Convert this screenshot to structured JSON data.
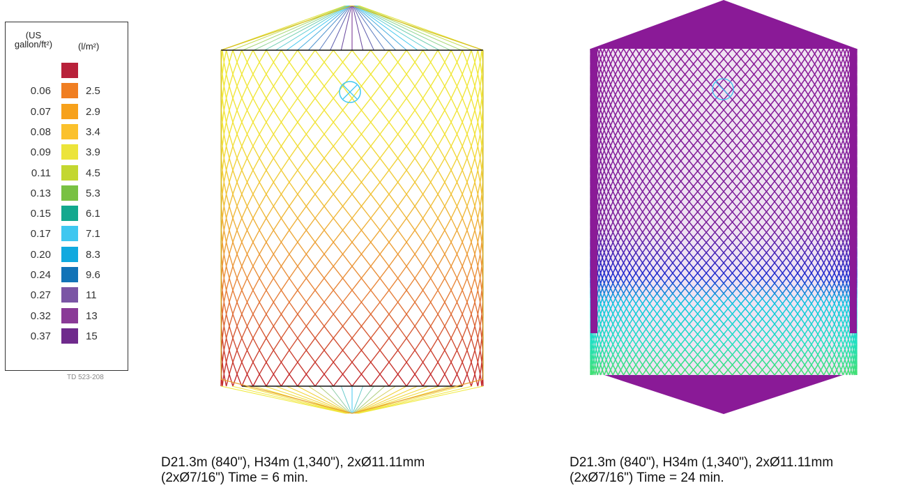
{
  "legend": {
    "header_us_line1": "(US",
    "header_us_line2": "gallon/ft²)",
    "header_si": "(l/m²)",
    "top_color": "#b8213a",
    "rows": [
      {
        "us": "0.06",
        "si": "2.5",
        "color": "#f07e22"
      },
      {
        "us": "0.07",
        "si": "2.9",
        "color": "#f7a11b"
      },
      {
        "us": "0.08",
        "si": "3.4",
        "color": "#fbc12c"
      },
      {
        "us": "0.09",
        "si": "3.9",
        "color": "#ece43a"
      },
      {
        "us": "0.11",
        "si": "4.5",
        "color": "#c3d730"
      },
      {
        "us": "0.13",
        "si": "5.3",
        "color": "#79c143"
      },
      {
        "us": "0.15",
        "si": "6.1",
        "color": "#13a88e"
      },
      {
        "us": "0.17",
        "si": "7.1",
        "color": "#3fc7f0"
      },
      {
        "us": "0.20",
        "si": "8.3",
        "color": "#10a9df"
      },
      {
        "us": "0.24",
        "si": "9.6",
        "color": "#1273b7"
      },
      {
        "us": "0.27",
        "si": "11",
        "color": "#7b55a5"
      },
      {
        "us": "0.32",
        "si": "13",
        "color": "#8a3a97"
      },
      {
        "us": "0.37",
        "si": "15",
        "color": "#6f2a8c"
      }
    ],
    "code": "TD 523-208"
  },
  "tanks": [
    {
      "caption_line1": "D21.3m (840\"), H34m (1,340\"), 2xØ11.11mm",
      "caption_line2": "(2xØ7/16\") Time = 6 min.",
      "pattern": "sparse-gradient"
    },
    {
      "caption_line1": "D21.3m (840\"), H34m (1,340\"), 2xØ11.11mm",
      "caption_line2": "(2xØ7/16\") Time = 24 min.",
      "pattern": "dense-saturated"
    }
  ]
}
